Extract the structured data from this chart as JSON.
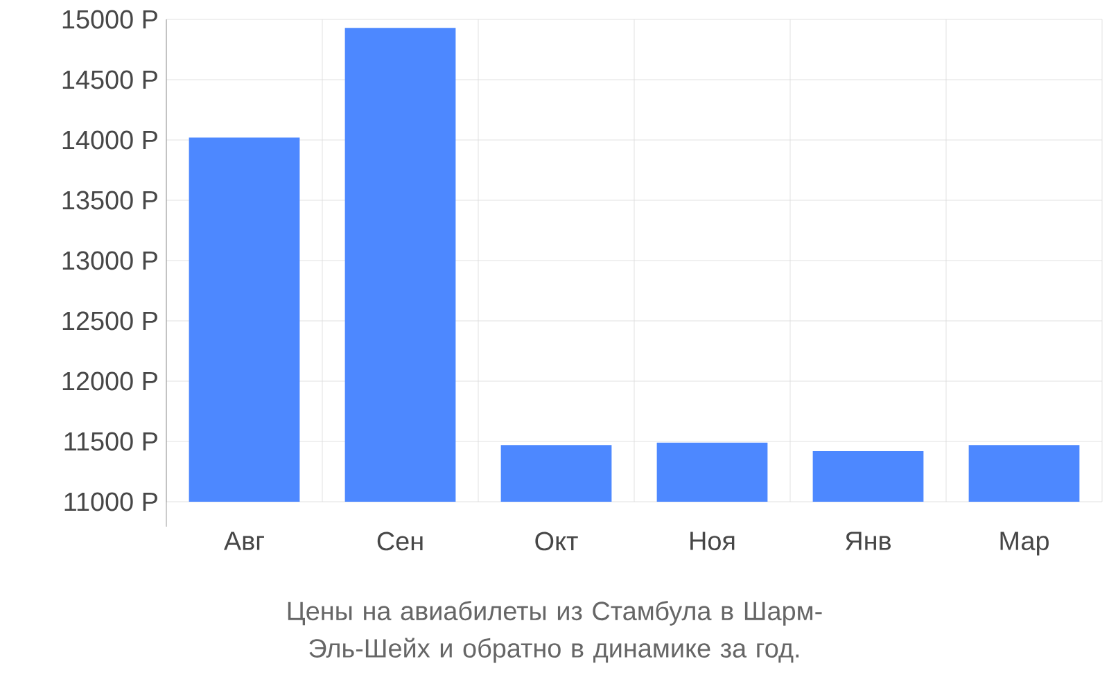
{
  "chart_data": {
    "type": "bar",
    "title": "Цены на авиабилеты из Стамбула в Шарм-Эль-Шейх и обратно в динамике за год.",
    "categories": [
      "Авг",
      "Сен",
      "Окт",
      "Ноя",
      "Янв",
      "Мар"
    ],
    "values": [
      14020,
      14930,
      11470,
      11490,
      11420,
      11470
    ],
    "color": "#4d88ff",
    "ylim": [
      11000,
      15000
    ],
    "yticks": [
      {
        "value": 11000,
        "label": "11000 Р"
      },
      {
        "value": 11500,
        "label": "11500 Р"
      },
      {
        "value": 12000,
        "label": "12000 Р"
      },
      {
        "value": 12500,
        "label": "12500 Р"
      },
      {
        "value": 13000,
        "label": "13000 Р"
      },
      {
        "value": 13500,
        "label": "13500 Р"
      },
      {
        "value": 14000,
        "label": "14000 Р"
      },
      {
        "value": 14500,
        "label": "14500 Р"
      },
      {
        "value": 15000,
        "label": "15000 Р"
      }
    ],
    "grid": true
  }
}
